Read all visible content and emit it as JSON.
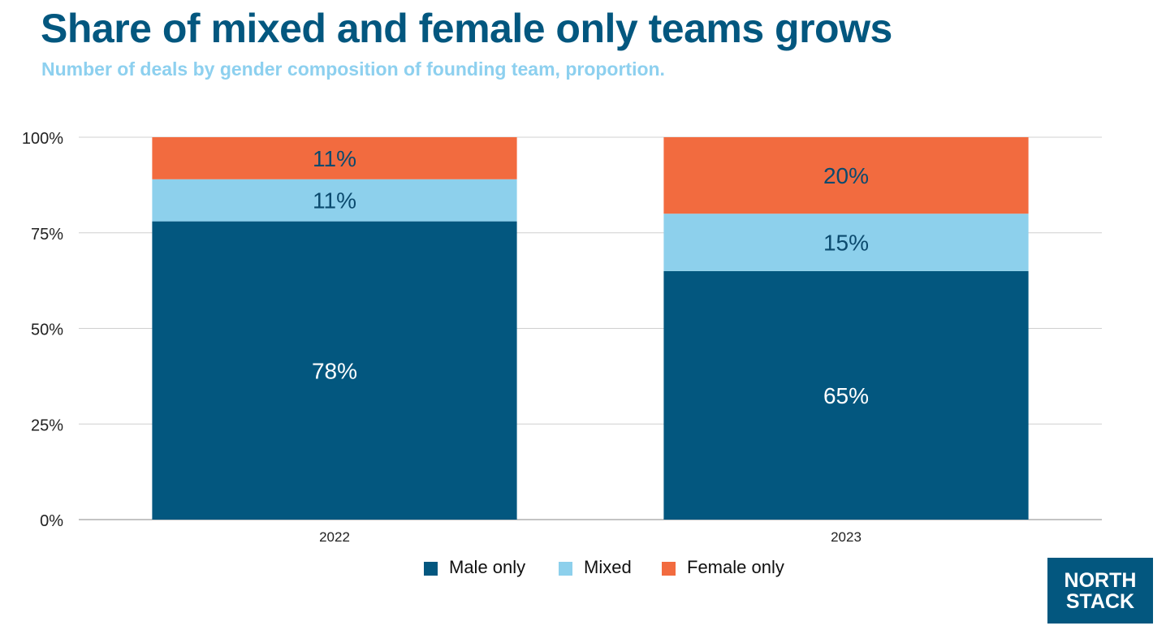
{
  "chart_data": {
    "type": "bar",
    "stacked": true,
    "title": "Share of mixed and female only teams grows",
    "subtitle": "Number of deals by gender composition of founding team, proportion.",
    "categories": [
      "2022",
      "2023"
    ],
    "series": [
      {
        "name": "Male only",
        "color": "#03577f",
        "label_color": "#ffffff",
        "values": [
          78,
          65
        ],
        "labels": [
          "78%",
          "65%"
        ]
      },
      {
        "name": "Mixed",
        "color": "#8dd0ec",
        "label_color": "#0b4a6e",
        "values": [
          11,
          15
        ],
        "labels": [
          "11%",
          "15%"
        ]
      },
      {
        "name": "Female only",
        "color": "#f26b3f",
        "label_color": "#0b4a6e",
        "values": [
          11,
          20
        ],
        "labels": [
          "11%",
          "20%"
        ]
      }
    ],
    "yticks": [
      0,
      25,
      50,
      75,
      100
    ],
    "ytick_labels": [
      "0%",
      "25%",
      "50%",
      "75%",
      "100%"
    ],
    "ylim": [
      0,
      100
    ],
    "xlabel": "",
    "ylabel": "",
    "grid": true,
    "legend_position": "bottom-center"
  },
  "logo": {
    "line1": "NORTH",
    "line2": "STACK"
  }
}
